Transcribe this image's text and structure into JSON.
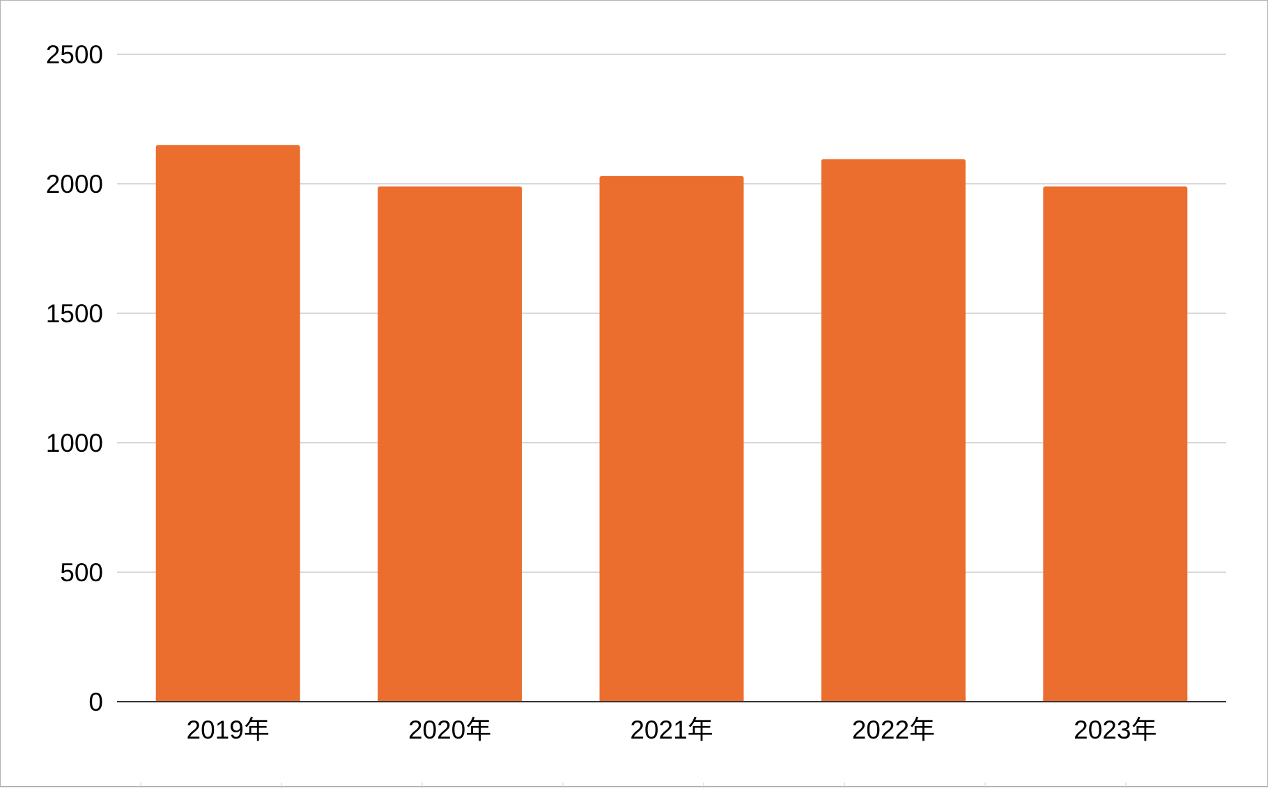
{
  "chart_data": {
    "type": "bar",
    "title": "",
    "xlabel": "",
    "ylabel": "",
    "categories": [
      "2019年",
      "2020年",
      "2021年",
      "2022年",
      "2023年"
    ],
    "values": [
      2150,
      1990,
      2030,
      2095,
      1990
    ],
    "ylim": [
      0,
      2500
    ],
    "yticks": [
      0,
      500,
      1000,
      1500,
      2000,
      2500
    ],
    "grid": true,
    "legend": "none",
    "bar_color": "#EB6E2F"
  }
}
